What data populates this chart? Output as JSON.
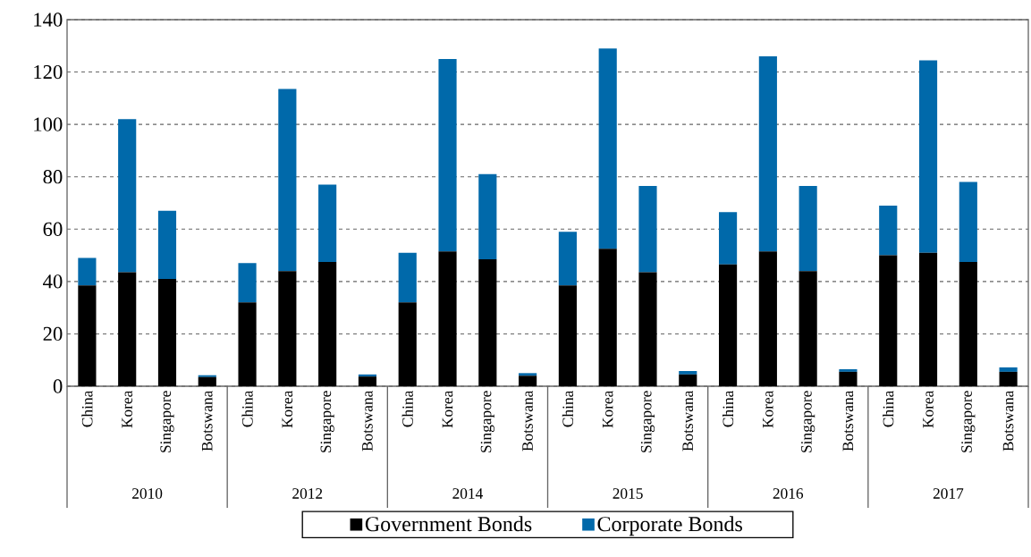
{
  "chart_data": {
    "type": "bar",
    "stacked": true,
    "categories": [
      "China",
      "Korea",
      "Singapore",
      "Botswana",
      "China",
      "Korea",
      "Singapore",
      "Botswana",
      "China",
      "Korea",
      "Singapore",
      "Botswana",
      "China",
      "Korea",
      "Singapore",
      "Botswana",
      "China",
      "Korea",
      "Singapore",
      "Botswana",
      "China",
      "Korea",
      "Singapore",
      "Botswana"
    ],
    "series": [
      {
        "name": "Government Bonds",
        "color": "#000000",
        "values": [
          38.5,
          43.5,
          41,
          3.5,
          32,
          44,
          47.5,
          3.7,
          32,
          51.5,
          48.5,
          4,
          38.5,
          52.5,
          43.5,
          4.5,
          46.5,
          51.5,
          44,
          5.5,
          50,
          51,
          47.5,
          5.5
        ]
      },
      {
        "name": "Corporate Bonds",
        "color": "#0069aa",
        "values": [
          10.5,
          58.5,
          26,
          0.7,
          15,
          69.5,
          29.5,
          0.8,
          19,
          73.5,
          32.5,
          1,
          20.5,
          76.5,
          33,
          1.3,
          20,
          74.5,
          32.5,
          1,
          19,
          73.5,
          30.5,
          1.7
        ]
      }
    ],
    "annotations": [
      "2010",
      "2012",
      "2014",
      "2015",
      "2016",
      "2017"
    ],
    "ylim": [
      0,
      140
    ],
    "yticks": [
      0,
      20,
      40,
      60,
      80,
      100,
      120,
      140
    ],
    "grid": "y",
    "legend": "bottom"
  }
}
